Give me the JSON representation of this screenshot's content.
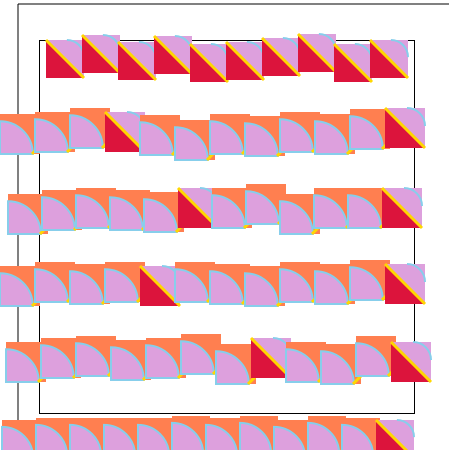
{
  "colors": {
    "background": "#ffffff",
    "frame": "#000000",
    "tile_red": "#dc143c",
    "tile_orange": "#ff7f50",
    "tile_violet": "#dda0dd",
    "tile_outline": "#87ceeb",
    "tile_stripe": "#ffd700"
  },
  "tile_kinds": [
    "quarter-circle-tile",
    "diagonal-split-tile"
  ]
}
